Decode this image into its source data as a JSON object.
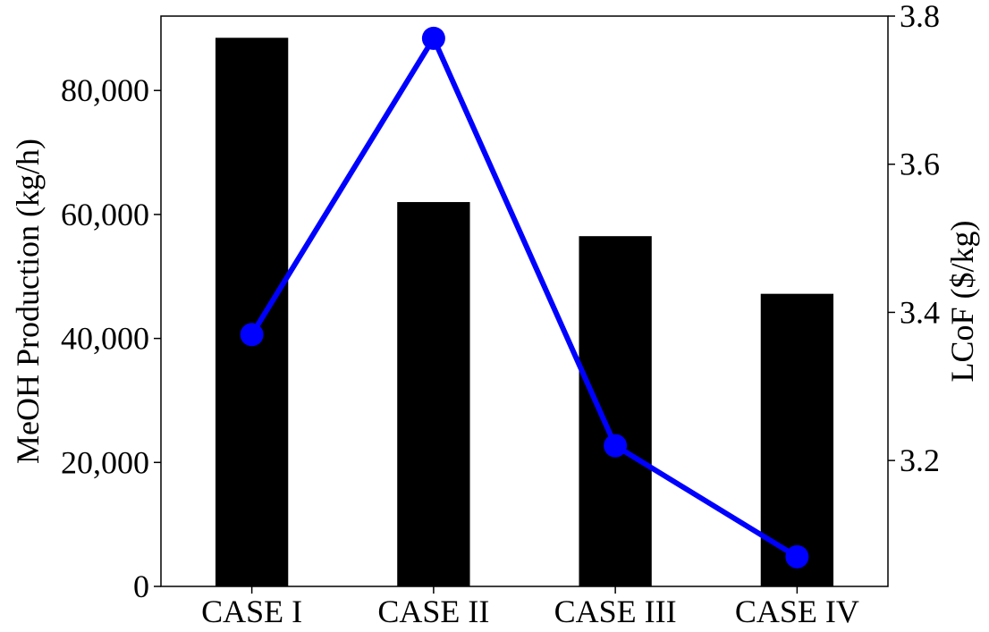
{
  "chart_data": {
    "type": "bar",
    "categories": [
      "CASE I",
      "CASE II",
      "CASE III",
      "CASE IV"
    ],
    "series": [
      {
        "type": "bar",
        "axis": "left",
        "color": "#000000",
        "values": [
          88500,
          62000,
          56500,
          47200
        ]
      },
      {
        "type": "line",
        "axis": "right",
        "color": "#0000ff",
        "marker": "circle",
        "values": [
          3.37,
          3.77,
          3.22,
          3.07
        ]
      }
    ],
    "title": "",
    "ylabel": "MeOH Production (kg/h)",
    "ylabel_right": "LCoF ($/kg)",
    "ylim": [
      0,
      92000
    ],
    "ylim_right": [
      3.03,
      3.8
    ],
    "yticks": [
      0,
      20000,
      40000,
      60000,
      80000
    ],
    "ytick_labels": [
      "0",
      "20,000",
      "40,000",
      "60,000",
      "80,000"
    ],
    "yticks_right": [
      3.2,
      3.4,
      3.6,
      3.8
    ],
    "ytick_labels_right": [
      "3.2",
      "3.4",
      "3.6",
      "3.8"
    ],
    "grid": false,
    "legend": "none"
  }
}
